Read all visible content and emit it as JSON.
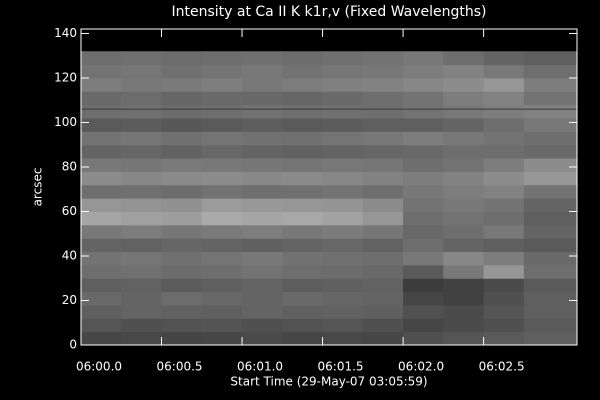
{
  "chart_data": {
    "type": "heatmap",
    "title": "Intensity at Ca II K k1r,v (Fixed Wavelengths)",
    "xlabel": "Start Time (29-May-07 03:05:59)",
    "ylabel": "arcsec",
    "xlim": [
      0,
      3.08
    ],
    "ylim": [
      0,
      142
    ],
    "xticks": [
      {
        "value": 0,
        "label": "06:00.0"
      },
      {
        "value": 0.5,
        "label": "06:00.5"
      },
      {
        "value": 1,
        "label": "06:01.0"
      },
      {
        "value": 1.5,
        "label": "06:01.5"
      },
      {
        "value": 2,
        "label": "06:02.0"
      },
      {
        "value": 2.5,
        "label": "06:02.5"
      }
    ],
    "yticks": [
      0,
      20,
      40,
      60,
      80,
      100,
      120,
      140
    ],
    "x": [
      0,
      0.25,
      0.5,
      0.75,
      1,
      1.25,
      1.5,
      1.75,
      2,
      2.25,
      2.5,
      2.75,
      3.08
    ],
    "y": [
      0,
      6,
      12,
      18,
      24,
      30,
      36,
      42,
      48,
      54,
      60,
      66,
      72,
      78,
      84,
      90,
      96,
      102,
      108,
      114,
      120,
      126,
      132
    ],
    "z": [
      [
        70,
        72,
        68,
        70,
        74,
        70,
        72,
        70,
        80,
        85,
        90,
        95
      ],
      [
        85,
        80,
        82,
        84,
        80,
        82,
        85,
        80,
        70,
        75,
        80,
        90
      ],
      [
        95,
        100,
        98,
        95,
        100,
        96,
        98,
        95,
        80,
        75,
        85,
        95
      ],
      [
        105,
        100,
        108,
        104,
        100,
        106,
        102,
        100,
        70,
        65,
        80,
        95
      ],
      [
        95,
        98,
        92,
        96,
        100,
        94,
        96,
        98,
        60,
        65,
        75,
        90
      ],
      [
        110,
        112,
        108,
        110,
        115,
        110,
        108,
        105,
        90,
        120,
        150,
        110
      ],
      [
        115,
        118,
        112,
        116,
        120,
        114,
        112,
        110,
        120,
        135,
        125,
        105
      ],
      [
        100,
        98,
        102,
        100,
        96,
        100,
        104,
        98,
        110,
        100,
        95,
        90
      ],
      [
        120,
        125,
        118,
        122,
        126,
        120,
        124,
        118,
        105,
        110,
        120,
        100
      ],
      [
        165,
        160,
        158,
        170,
        165,
        168,
        162,
        150,
        110,
        115,
        110,
        95
      ],
      [
        150,
        148,
        145,
        155,
        152,
        150,
        148,
        140,
        115,
        120,
        115,
        100
      ],
      [
        110,
        112,
        108,
        114,
        110,
        112,
        115,
        110,
        120,
        125,
        130,
        115
      ],
      [
        140,
        135,
        138,
        140,
        136,
        138,
        135,
        130,
        125,
        130,
        140,
        150
      ],
      [
        120,
        118,
        122,
        120,
        118,
        116,
        120,
        118,
        110,
        115,
        125,
        140
      ],
      [
        100,
        102,
        98,
        104,
        100,
        98,
        100,
        102,
        105,
        110,
        110,
        105
      ],
      [
        115,
        118,
        112,
        116,
        114,
        112,
        116,
        120,
        125,
        120,
        115,
        110
      ],
      [
        90,
        92,
        88,
        90,
        94,
        90,
        92,
        95,
        95,
        100,
        110,
        120
      ],
      [
        110,
        112,
        108,
        110,
        114,
        110,
        112,
        110,
        115,
        120,
        125,
        130
      ],
      [
        105,
        108,
        102,
        106,
        104,
        102,
        106,
        110,
        115,
        125,
        130,
        115
      ],
      [
        125,
        120,
        122,
        126,
        120,
        124,
        128,
        130,
        135,
        140,
        150,
        125
      ],
      [
        115,
        118,
        112,
        116,
        120,
        114,
        118,
        120,
        125,
        130,
        120,
        110
      ],
      [
        110,
        112,
        108,
        110,
        112,
        108,
        112,
        115,
        120,
        110,
        100,
        95
      ]
    ],
    "hline": 106,
    "hline_color": "#3a3a3a"
  }
}
